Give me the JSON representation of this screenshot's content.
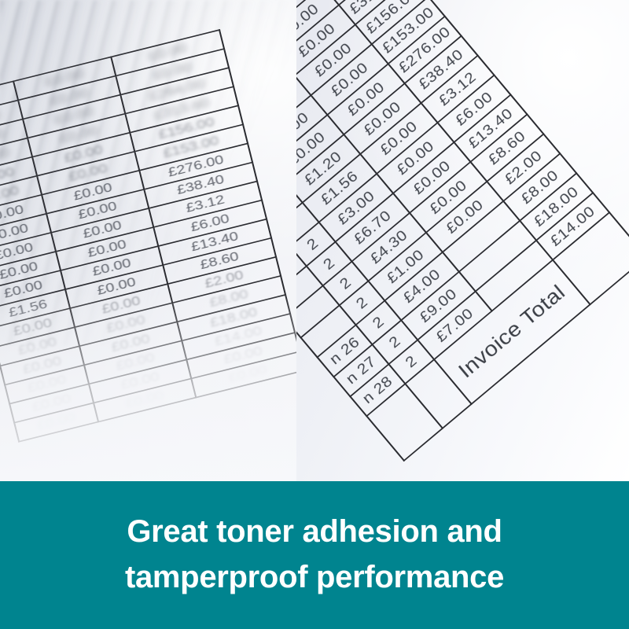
{
  "banner": {
    "line1": "Great toner adhesion and",
    "line2": "tamperproof performance",
    "bg_color": "#00848f",
    "text_color": "#ffffff"
  },
  "right_photo": {
    "description_rows_note": "",
    "invoice_total_label": "Invoice Total",
    "rows": [
      [
        "",
        "",
        "£0.00",
        "£0.00",
        "£264."
      ],
      [
        "",
        "",
        "£0.00",
        "£0.00",
        "£313.60"
      ],
      [
        "",
        "",
        "£0.00",
        "£0.00",
        "£156.00"
      ],
      [
        "",
        "",
        "£0.00",
        "£0.00",
        "£153.00"
      ],
      [
        "",
        "",
        "£0.00",
        "£0.00",
        "£276.00"
      ],
      [
        "",
        "",
        "£1.20",
        "£0.00",
        "£38.40"
      ],
      [
        "",
        "",
        "£1.56",
        "£0.00",
        "£3.12"
      ],
      [
        "",
        "2",
        "£3.00",
        "£0.00",
        "£6.00"
      ],
      [
        "",
        "2",
        "£6.70",
        "£0.00",
        "£13.40"
      ],
      [
        "",
        "2",
        "£4.30",
        "£0.00",
        "£8.60"
      ],
      [
        "",
        "2",
        "£1.00",
        "£0.00",
        "£2.00"
      ],
      [
        "n 26",
        "2",
        "£4.00",
        "",
        "£8.00"
      ],
      [
        "n 27",
        "2",
        "£9.00",
        "",
        "£18.00"
      ],
      [
        "n 28",
        "2",
        "£7.00",
        "",
        "£14.00"
      ]
    ]
  },
  "left_photo": {
    "rows": [
      {
        "cells": [
          "£0.00",
          "£0.00",
          "£0.00"
        ],
        "fade": "smudge"
      },
      {
        "cells": [
          "£0.00",
          "£0.00",
          "£0.00"
        ],
        "fade": "smudge"
      },
      {
        "cells": [
          "£0.00",
          "£0.00",
          "£264.00"
        ],
        "fade": "smudge"
      },
      {
        "cells": [
          "£0.00",
          "£0.00",
          "£313.60"
        ],
        "fade": "smudge"
      },
      {
        "cells": [
          "£0.00",
          "£0.00",
          "£156.00"
        ],
        "fade": "faint"
      },
      {
        "cells": [
          "£0.00",
          "£0.00",
          "£153.00"
        ],
        "fade": "faint"
      },
      {
        "cells": [
          "£0.00",
          "£0.00",
          "£276.00"
        ],
        "fade": "clear"
      },
      {
        "cells": [
          "£0.00",
          "£0.00",
          "£38.40"
        ],
        "fade": "clear"
      },
      {
        "cells": [
          "£0.00",
          "£0.00",
          "£3.12"
        ],
        "fade": "clear"
      },
      {
        "cells": [
          "£0.00",
          "£0.00",
          "£6.00"
        ],
        "fade": "clear"
      },
      {
        "cells": [
          "£0.00",
          "£0.00",
          "£13.40"
        ],
        "fade": "clear"
      },
      {
        "cells": [
          "£1.56",
          "£0.00",
          "£8.60"
        ],
        "fade": "clear"
      },
      {
        "cells": [
          "£0.00",
          "£0.00",
          "£2.00"
        ],
        "fade": "fade1"
      },
      {
        "cells": [
          "£0.00",
          "£0.00",
          "£8.00"
        ],
        "fade": "fade2"
      },
      {
        "cells": [
          "£0.00",
          "£0.00",
          "£18.00"
        ],
        "fade": "fade2"
      },
      {
        "cells": [
          "£0.00",
          "£0.00",
          "£14.00"
        ],
        "fade": "fade3"
      },
      {
        "cells": [
          "£0.00",
          "£0.00",
          "£0.00"
        ],
        "fade": "fade3"
      },
      {
        "cells": [
          "£0.00",
          "£0.00",
          "£0.00"
        ],
        "fade": "fade4"
      }
    ]
  }
}
